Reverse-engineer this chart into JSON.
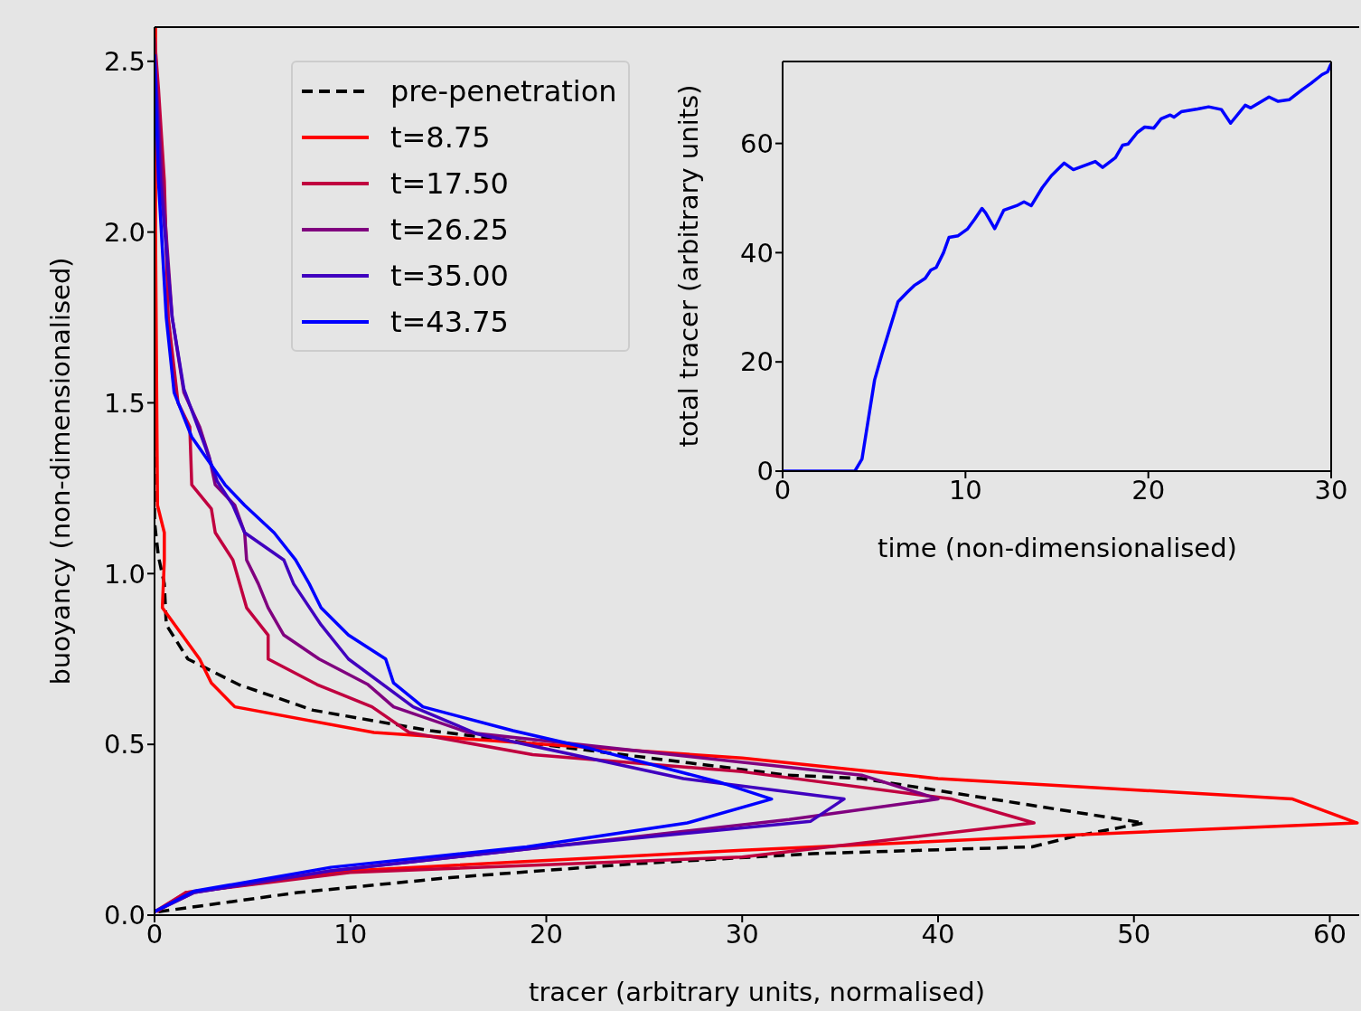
{
  "chart_data": [
    {
      "type": "line",
      "xlabel": "tracer (arbitrary units, normalised)",
      "ylabel": "buoyancy (non-dimensionalised)",
      "xlim": [
        0,
        61.5
      ],
      "ylim": [
        0,
        2.6
      ],
      "xticks": [
        0,
        10,
        20,
        30,
        40,
        50,
        60
      ],
      "yticks": [
        {
          "value": 0,
          "label": "0.0"
        },
        {
          "value": 0.5,
          "label": "0.5"
        },
        {
          "value": 1,
          "label": "1.0"
        },
        {
          "value": 1.5,
          "label": "1.5"
        },
        {
          "value": 2,
          "label": "2.0"
        },
        {
          "value": 2.5,
          "label": "2.5"
        }
      ],
      "grid": false,
      "legend": "top left",
      "marker": "none",
      "series": [
        {
          "name": "pre-penetration",
          "color": "#000000",
          "line_style": "dashed",
          "x": [
            0.2,
            7.3,
            15.1,
            24.4,
            33.6,
            44.8,
            46.9,
            50.5,
            36.1,
            32.3,
            14.1,
            8.1,
            4.3,
            1.7,
            0.6,
            0.5,
            0.2,
            0,
            0
          ],
          "values": [
            0.01,
            0.066,
            0.11,
            0.15,
            0.18,
            0.2,
            0.23,
            0.27,
            0.4,
            0.41,
            0.54,
            0.6,
            0.675,
            0.75,
            0.85,
            0.97,
            1.05,
            1.15,
            2.6
          ]
        },
        {
          "name": "t=8.75",
          "color": "#ff0000",
          "line_style": "solid",
          "x": [
            0.1,
            1.6,
            10,
            30,
            47,
            61.4,
            58.1,
            40,
            30,
            20,
            11.2,
            4.1,
            2.9,
            2.3,
            0.4,
            0.5,
            0.5,
            0.15,
            0.05,
            0.05
          ],
          "values": [
            0.01,
            0.066,
            0.13,
            0.19,
            0.235,
            0.27,
            0.34,
            0.4,
            0.46,
            0.5,
            0.535,
            0.61,
            0.68,
            0.75,
            0.9,
            1.04,
            1.12,
            1.2,
            2.0,
            2.6
          ]
        },
        {
          "name": "t=17.50",
          "color": "#c0003f",
          "line_style": "solid",
          "x": [
            0,
            1.6,
            10,
            30,
            44.9,
            40.7,
            30,
            19.3,
            13,
            11.1,
            8.3,
            5.8,
            5.8,
            4.7,
            4,
            3.1,
            2.9,
            1.9,
            1.8,
            1.2,
            0.7,
            0.5,
            0.2,
            0
          ],
          "values": [
            0.01,
            0.066,
            0.125,
            0.17,
            0.27,
            0.34,
            0.42,
            0.47,
            0.535,
            0.61,
            0.675,
            0.75,
            0.82,
            0.9,
            1.04,
            1.12,
            1.19,
            1.26,
            1.43,
            1.5,
            1.75,
            2.15,
            2.42,
            2.57
          ]
        },
        {
          "name": "t=26.25",
          "color": "#80007f",
          "line_style": "solid",
          "x": [
            0,
            2,
            9,
            20,
            32.4,
            40,
            36.1,
            16,
            12.2,
            10.9,
            8.4,
            6.6,
            5.8,
            5.3,
            4.7,
            4.6,
            4.1,
            3.1,
            2.8,
            2.3,
            1.5,
            0.9,
            0.4,
            0
          ],
          "values": [
            0.01,
            0.066,
            0.13,
            0.2,
            0.28,
            0.34,
            0.41,
            0.535,
            0.61,
            0.675,
            0.75,
            0.82,
            0.9,
            0.97,
            1.04,
            1.12,
            1.2,
            1.26,
            1.34,
            1.43,
            1.53,
            1.75,
            2.15,
            2.52
          ]
        },
        {
          "name": "t=35.00",
          "color": "#4000bf",
          "line_style": "solid",
          "x": [
            0,
            2,
            9,
            20,
            33.5,
            35.2,
            27,
            16.5,
            13.2,
            9.9,
            8.5,
            7.1,
            6.6,
            4.6,
            4,
            3.2,
            2.6,
            1.5,
            0.9,
            0.3,
            0
          ],
          "values": [
            0.01,
            0.066,
            0.13,
            0.2,
            0.275,
            0.34,
            0.4,
            0.53,
            0.61,
            0.75,
            0.85,
            0.97,
            1.04,
            1.12,
            1.2,
            1.27,
            1.37,
            1.54,
            1.75,
            2.15,
            2.52
          ]
        },
        {
          "name": "t=43.75",
          "color": "#0000ff",
          "line_style": "solid",
          "x": [
            0,
            2,
            9,
            19,
            27.2,
            31.5,
            28.8,
            22.1,
            18.3,
            13.7,
            12.2,
            11.8,
            9.9,
            8.5,
            7.9,
            7.2,
            6.1,
            4.6,
            3.6,
            1.9,
            1,
            0.6,
            0.2,
            0
          ],
          "values": [
            0.01,
            0.07,
            0.14,
            0.2,
            0.27,
            0.34,
            0.39,
            0.49,
            0.54,
            0.61,
            0.68,
            0.75,
            0.82,
            0.9,
            0.97,
            1.04,
            1.12,
            1.2,
            1.26,
            1.4,
            1.53,
            1.75,
            2.15,
            2.52
          ]
        }
      ]
    },
    {
      "type": "line",
      "xlabel": "time (non-dimensionalised)",
      "ylabel": "total tracer (arbitrary units)",
      "xlim": [
        0,
        30
      ],
      "ylim": [
        0,
        75
      ],
      "xticks": [
        0,
        10,
        20,
        30
      ],
      "yticks": [
        0,
        20,
        40,
        60
      ],
      "grid": false,
      "legend": false,
      "marker": "none",
      "series": [
        {
          "color": "#0000ff",
          "line_style": "solid",
          "x": [
            0,
            3.95,
            4.34,
            5.03,
            5.43,
            6.31,
            6.8,
            7.2,
            7.8,
            8.1,
            8.4,
            8.8,
            9.1,
            9.6,
            10.1,
            10.5,
            10.9,
            11.1,
            11.6,
            12.1,
            12.8,
            13.2,
            13.6,
            14.2,
            14.7,
            15.4,
            15.9,
            17.1,
            17.5,
            18.2,
            18.6,
            18.9,
            19.4,
            19.8,
            20.3,
            20.7,
            21.2,
            21.4,
            21.8,
            22.7,
            23.3,
            24,
            24.5,
            25.3,
            25.6,
            26.1,
            26.6,
            27.1,
            27.7,
            28.4,
            28.9,
            29.5,
            29.8,
            30
          ],
          "values": [
            0,
            0,
            2.2,
            16.7,
            21.4,
            31,
            32.7,
            34,
            35.3,
            36.8,
            37.3,
            40,
            42.8,
            43.1,
            44.3,
            46.1,
            48.1,
            47.3,
            44.4,
            47.8,
            48.6,
            49.3,
            48.6,
            51.9,
            54.1,
            56.4,
            55.2,
            56.7,
            55.6,
            57.4,
            59.7,
            59.9,
            62,
            63,
            62.8,
            64.5,
            65.2,
            64.8,
            65.8,
            66.3,
            66.7,
            66.2,
            63.7,
            67,
            66.5,
            67.5,
            68.5,
            67.7,
            68,
            69.8,
            71,
            72.6,
            73.1,
            74.6
          ]
        }
      ]
    }
  ]
}
